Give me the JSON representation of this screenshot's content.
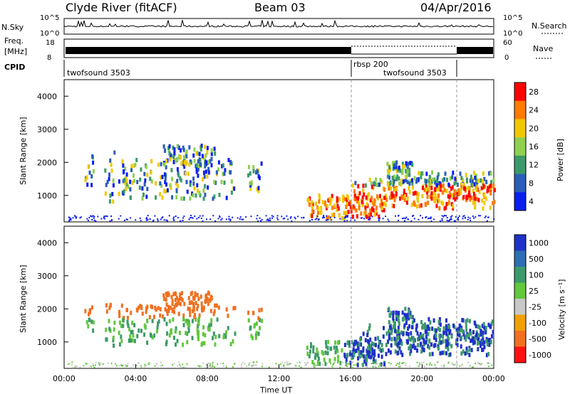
{
  "header": {
    "station": "Clyde River (fitACF)",
    "beam": "Beam 03",
    "date": "04/Apr/2016"
  },
  "top_panels": {
    "nsky_label": "N.Sky",
    "nsky_ticks": [
      "10^5",
      "10^0"
    ],
    "nsearch_label": "N.Search",
    "nsearch_ticks": [
      "10^5",
      "10^0"
    ],
    "freq_label_1": "Freq.",
    "freq_label_2": "[MHz]",
    "freq_ticks": [
      "18",
      "8"
    ],
    "nave_label": "Nave",
    "nave_ticks": [
      "60",
      "0"
    ],
    "cpid_label": "CPID",
    "cpid_segments": [
      {
        "label": "twofsound 3503",
        "start_hour": 0,
        "end_hour": 16
      },
      {
        "label": "rbsp 200",
        "start_hour": 16,
        "end_hour": 22
      },
      {
        "label": "twofsound 3503",
        "start_hour": 22,
        "end_hour": 24
      }
    ],
    "cpid_extra_label": "twofsound 3503"
  },
  "axes": {
    "x_ticks": [
      "00:00",
      "04:00",
      "08:00",
      "12:00",
      "16:00",
      "20:00",
      "00:00"
    ],
    "x_label": "Time UT",
    "y_label": "Slant Range [km]",
    "y_ticks": [
      "1000",
      "2000",
      "3000",
      "4000"
    ]
  },
  "colorbars": {
    "power": {
      "label": "Power [dB]",
      "ticks": [
        "28",
        "24",
        "20",
        "16",
        "12",
        "8",
        "4"
      ],
      "colors": [
        "#ff0000",
        "#ff7a00",
        "#f0c800",
        "#8fd050",
        "#3c9a6a",
        "#2a5db8",
        "#0a1ef0"
      ]
    },
    "velocity": {
      "label": "Velocity [m s⁻¹]",
      "ticks": [
        "1000",
        "500",
        "100",
        "25",
        "-25",
        "-100",
        "-500",
        "-1000"
      ],
      "colors": [
        "#1e32c8",
        "#2e6eb4",
        "#3c9a6a",
        "#62c83c",
        "#c8c8c8",
        "#f0a000",
        "#f07020",
        "#ff1010"
      ]
    }
  },
  "chart_data": [
    {
      "type": "line",
      "title": "N.Sky / N.Search",
      "x_unit": "hours UT",
      "xlim": [
        0,
        24
      ],
      "note": "log-scale noise level, range 10^0 to 10^5"
    },
    {
      "type": "line",
      "title": "Freq. [MHz] / Nave",
      "xlim": [
        0,
        24
      ],
      "freq_ylim": [
        8,
        18
      ],
      "nave_ylim": [
        0,
        60
      ]
    },
    {
      "type": "heatmap",
      "title": "Power",
      "xlabel": "Time UT",
      "ylabel": "Slant Range [km]",
      "xlim": [
        0,
        24
      ],
      "ylim": [
        200,
        4500
      ],
      "colorbar": "Power [dB]",
      "clim": [
        0,
        30
      ]
    },
    {
      "type": "heatmap",
      "title": "Velocity",
      "xlabel": "Time UT",
      "ylabel": "Slant Range [km]",
      "xlim": [
        0,
        24
      ],
      "ylim": [
        200,
        4500
      ],
      "colorbar": "Velocity [m s^-1]",
      "clim": [
        -1000,
        1000
      ]
    }
  ]
}
